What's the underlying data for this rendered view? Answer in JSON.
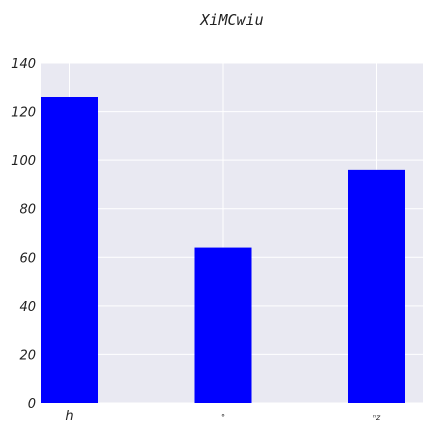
{
  "chart_data": {
    "type": "bar",
    "title": "XiMCwiu",
    "xlabel": "",
    "ylabel": "",
    "categories": [
      "h",
      "°",
      "ⁿz"
    ],
    "values": [
      126,
      64,
      96
    ],
    "ylim": [
      0,
      140
    ],
    "yticks": [
      0,
      20,
      40,
      60,
      80,
      100,
      120,
      140
    ],
    "grid": true,
    "legend": "none",
    "colors": {
      "bar": "#0000ff",
      "plot_background": "#e9e9f2",
      "grid": "#ffffff",
      "text": "#222222"
    }
  }
}
